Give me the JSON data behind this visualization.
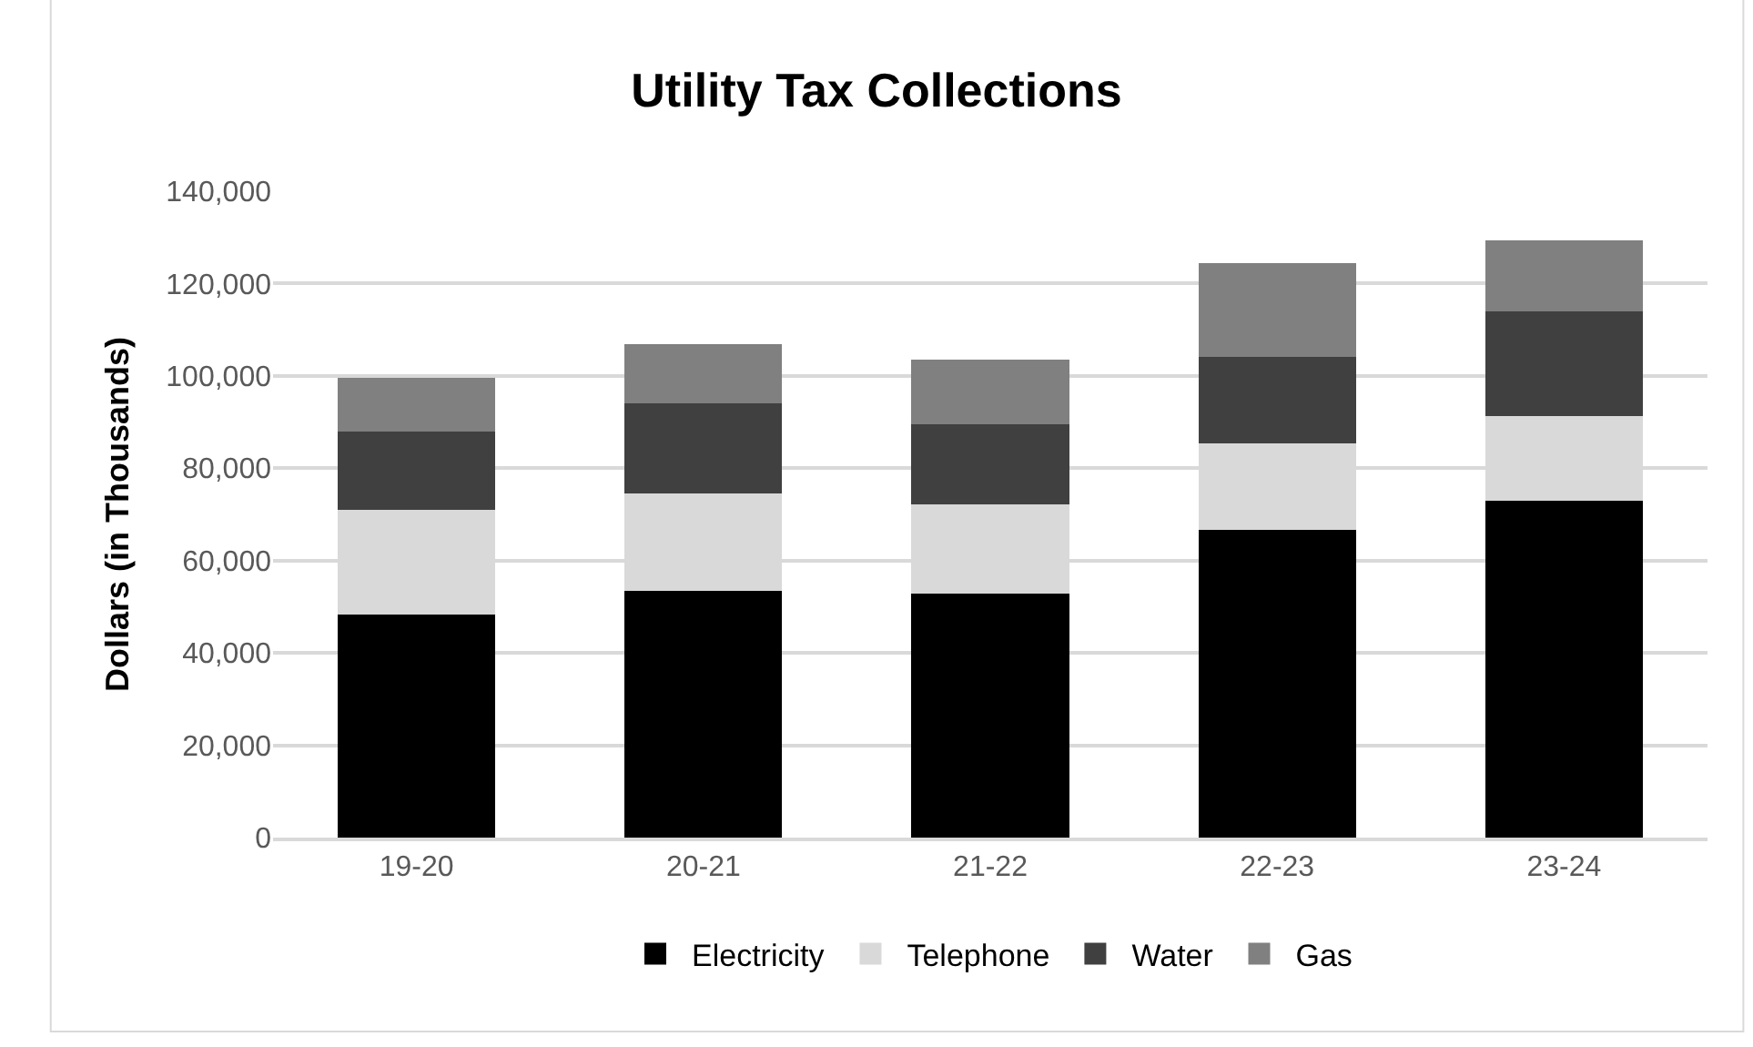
{
  "chart_data": {
    "type": "bar",
    "title": "Utility Tax Collections",
    "ylabel": "Dollars (in Thousands)",
    "categories": [
      "19-20",
      "20-21",
      "21-22",
      "22-23",
      "23-24"
    ],
    "stacked": true,
    "series": [
      {
        "name": "Electricity",
        "color": "#000000",
        "values": [
          48400,
          53400,
          52900,
          66600,
          72900
        ]
      },
      {
        "name": "Telephone",
        "color": "#d9d9d9",
        "values": [
          22600,
          21100,
          19300,
          18700,
          18400
        ]
      },
      {
        "name": "Water",
        "color": "#404040",
        "values": [
          17000,
          19600,
          17400,
          18900,
          22700
        ]
      },
      {
        "name": "Gas",
        "color": "#808080",
        "values": [
          11600,
          12700,
          14000,
          20200,
          15400
        ]
      }
    ],
    "ylim": [
      0,
      140000
    ],
    "yticks": [
      {
        "value": 0,
        "label": "0"
      },
      {
        "value": 20000,
        "label": "20,000"
      },
      {
        "value": 40000,
        "label": "40,000"
      },
      {
        "value": 60000,
        "label": "60,000"
      },
      {
        "value": 80000,
        "label": "80,000"
      },
      {
        "value": 100000,
        "label": "100,000"
      },
      {
        "value": 120000,
        "label": "120,000"
      },
      {
        "value": 140000,
        "label": "140,000"
      }
    ],
    "grid": "y",
    "legend": "bottom"
  }
}
